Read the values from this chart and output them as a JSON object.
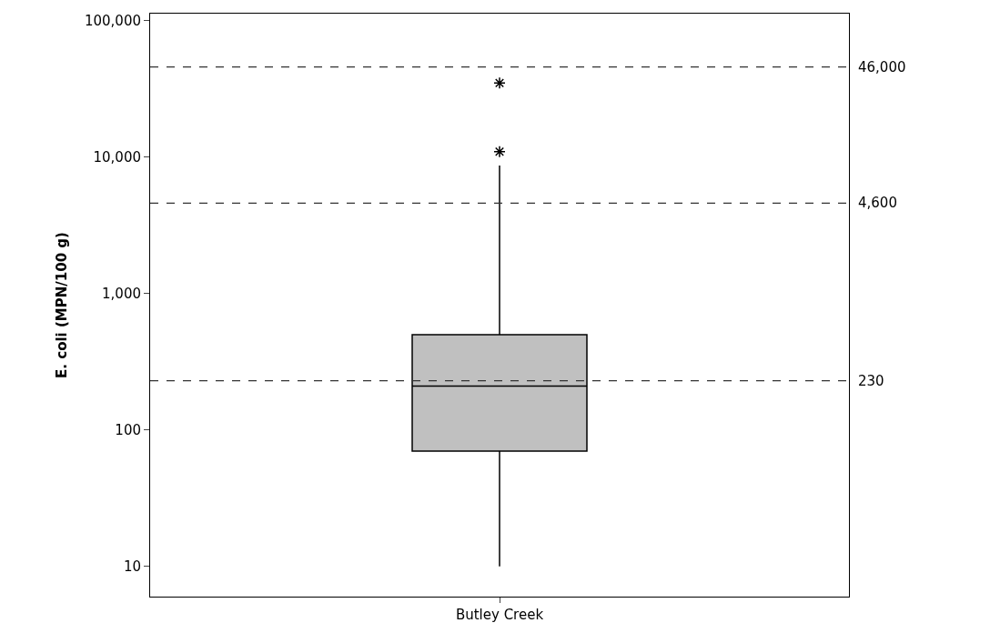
{
  "chart_data": {
    "type": "box",
    "ylabel": "E. coli (MPN/100 g)",
    "categories": [
      "Butley Creek"
    ],
    "boxes": [
      {
        "low": 10,
        "q1": 70,
        "median": 210,
        "q3": 500,
        "high": 8700,
        "outliers": [
          11000,
          35000
        ]
      }
    ],
    "color": "#c0c0c0",
    "log": true,
    "ylim": [
      6,
      113000
    ],
    "yticks": [
      {
        "value": 10,
        "label": "10"
      },
      {
        "value": 100,
        "label": "100"
      },
      {
        "value": 1000,
        "label": "1,000"
      },
      {
        "value": 10000,
        "label": "10,000"
      },
      {
        "value": 100000,
        "label": "100,000"
      }
    ],
    "ref_lines": [
      {
        "axis": "y",
        "value": 46000,
        "label": "46,000",
        "line_style": "dashed"
      },
      {
        "axis": "y",
        "value": 4600,
        "label": "4,600",
        "line_style": "dashed"
      },
      {
        "axis": "y",
        "value": 230,
        "label": "230",
        "line_style": "dashed"
      }
    ]
  }
}
